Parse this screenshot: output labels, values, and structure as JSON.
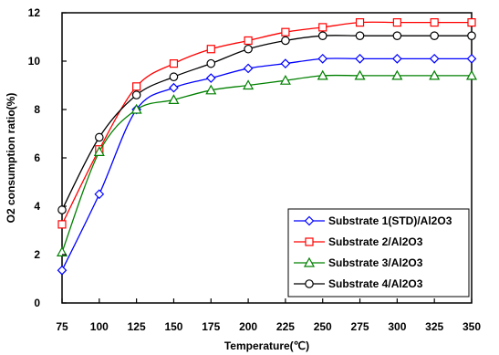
{
  "chart_data": {
    "type": "line",
    "title": "",
    "xlabel": "Temperature(℃)",
    "ylabel": "O2 consumption ratio(%)",
    "x": [
      75,
      100,
      125,
      150,
      175,
      200,
      225,
      250,
      275,
      300,
      325,
      350
    ],
    "xlim": [
      75,
      350
    ],
    "ylim": [
      0,
      12
    ],
    "yticks": [
      0,
      2,
      4,
      6,
      8,
      10,
      12
    ],
    "xticks": [
      75,
      100,
      125,
      150,
      175,
      200,
      225,
      250,
      275,
      300,
      325,
      350
    ],
    "grid": false,
    "legend_position": "bottom-right",
    "series": [
      {
        "name": "Substrate 1(STD)/Al2O3",
        "color": "#0000ff",
        "marker": "diamond",
        "values": [
          1.35,
          4.5,
          8.0,
          8.9,
          9.3,
          9.7,
          9.9,
          10.1,
          10.1,
          10.1,
          10.1,
          10.1
        ]
      },
      {
        "name": "Substrate  2/Al2O3",
        "color": "#ff0000",
        "marker": "square",
        "values": [
          3.25,
          6.35,
          8.95,
          9.9,
          10.5,
          10.85,
          11.2,
          11.4,
          11.6,
          11.6,
          11.6,
          11.6
        ]
      },
      {
        "name": "Substrate  3/Al2O3",
        "color": "#008000",
        "marker": "triangle",
        "values": [
          2.1,
          6.25,
          8.0,
          8.4,
          8.8,
          9.0,
          9.2,
          9.4,
          9.4,
          9.4,
          9.4,
          9.4
        ]
      },
      {
        "name": "Substrate 4/Al2O3",
        "color": "#000000",
        "marker": "circle",
        "values": [
          3.85,
          6.85,
          8.6,
          9.35,
          9.9,
          10.5,
          10.85,
          11.05,
          11.05,
          11.05,
          11.05,
          11.05
        ]
      }
    ]
  }
}
